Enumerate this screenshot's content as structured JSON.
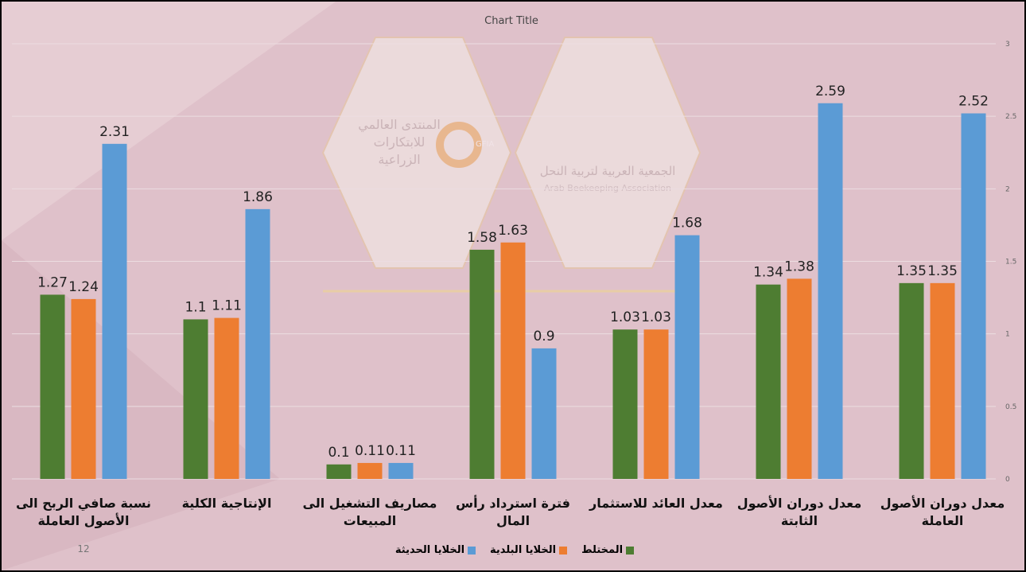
{
  "chart_data": {
    "type": "bar",
    "title": "Chart Title",
    "categories": [
      "نسبة صافي الربح الى الأصول العاملة",
      "الإنتاجية الكلية",
      "مصاريف التشغيل الى المبيعات",
      "فترة استرداد رأس المال",
      "معدل العائد للاستثمار",
      "معدل دوران الأصول الثابتة",
      "معدل دوران الأصول العاملة"
    ],
    "series": [
      {
        "name": "المختلط",
        "color": "#4e7d32",
        "values": [
          1.27,
          1.1,
          0.1,
          1.58,
          1.03,
          1.34,
          1.35
        ]
      },
      {
        "name": "الخلايا البلدية",
        "color": "#ed7d31",
        "values": [
          1.24,
          1.11,
          0.11,
          1.63,
          1.03,
          1.38,
          1.35
        ]
      },
      {
        "name": "الخلايا الحديثة",
        "color": "#5b9bd5",
        "values": [
          2.31,
          1.86,
          0.11,
          0.9,
          1.68,
          2.59,
          2.52
        ]
      }
    ],
    "ylim": [
      0,
      3
    ],
    "yticks": [
      0,
      0.5,
      1,
      1.5,
      2,
      2.5,
      3
    ],
    "grid": true,
    "legend": "bottom"
  },
  "slide_number": "12",
  "watermark": {
    "left_logo": [
      "المنتدى العالمي",
      "للابتكارات",
      "الزراعية"
    ],
    "left_badge": "GFIA",
    "right_logo": [
      "الجمعية العربية لتربية النحل",
      "Arab Beekeeping Association"
    ]
  }
}
